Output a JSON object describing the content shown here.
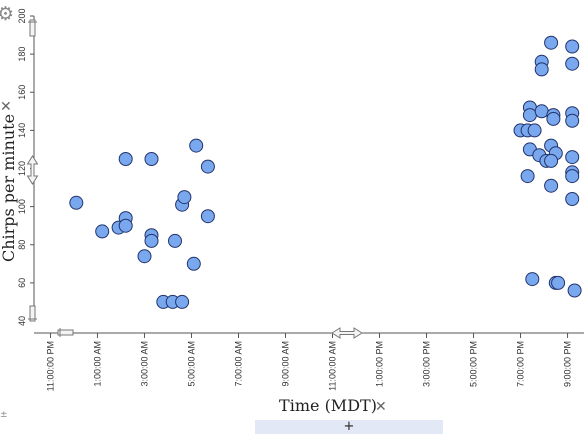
{
  "gear_icon": "gear-icon",
  "y_remove_icon": "close-icon",
  "x_remove_icon": "close-icon",
  "plus_label": "+",
  "attribute_icon": "±",
  "chart_data": {
    "type": "scatter",
    "xlabel": "Time (MDT)",
    "ylabel": "Chirps per minute",
    "ylim": [
      40,
      200
    ],
    "yticks": [
      40,
      60,
      80,
      100,
      120,
      140,
      160,
      180,
      200
    ],
    "xlim": [
      "10:18 PM",
      "9:42 PM"
    ],
    "x_tick_labels": [
      "11:00:00 PM",
      "1:00:00 AM",
      "3:00:00 AM",
      "5:00:00 AM",
      "7:00:00 AM",
      "9:00:00 AM",
      "11:00:00 AM",
      "1:00:00 PM",
      "3:00:00 PM",
      "5:00:00 PM",
      "7:00:00 PM",
      "9:00:00 PM"
    ],
    "grid": false,
    "point_color": "#79a8ef",
    "point_stroke": "#22336b",
    "points": [
      [
        "12:06 AM",
        102
      ],
      [
        "1:12 AM",
        87
      ],
      [
        "1:54 AM",
        89
      ],
      [
        "2:12 AM",
        94
      ],
      [
        "2:12 AM",
        90
      ],
      [
        "2:12 AM",
        125
      ],
      [
        "3:18 AM",
        125
      ],
      [
        "3:18 AM",
        85
      ],
      [
        "3:18 AM",
        82
      ],
      [
        "3:00 AM",
        74
      ],
      [
        "3:48 AM",
        50
      ],
      [
        "4:12 AM",
        50
      ],
      [
        "4:36 AM",
        50
      ],
      [
        "4:18 AM",
        82
      ],
      [
        "4:36 AM",
        101
      ],
      [
        "4:42 AM",
        105
      ],
      [
        "5:06 AM",
        70
      ],
      [
        "5:12 AM",
        132
      ],
      [
        "5:42 AM",
        121
      ],
      [
        "5:42 AM",
        95
      ],
      [
        "7:00 PM",
        140
      ],
      [
        "7:18 PM",
        140
      ],
      [
        "7:24 PM",
        152
      ],
      [
        "7:24 PM",
        148
      ],
      [
        "7:36 PM",
        140
      ],
      [
        "7:24 PM",
        130
      ],
      [
        "7:18 PM",
        116
      ],
      [
        "7:30 PM",
        62
      ],
      [
        "7:54 PM",
        150
      ],
      [
        "7:48 PM",
        127
      ],
      [
        "7:54 PM",
        176
      ],
      [
        "7:54 PM",
        172
      ],
      [
        "8:06 PM",
        124
      ],
      [
        "8:18 PM",
        132
      ],
      [
        "8:24 PM",
        148
      ],
      [
        "8:24 PM",
        146
      ],
      [
        "8:18 PM",
        186
      ],
      [
        "8:30 PM",
        128
      ],
      [
        "8:18 PM",
        124
      ],
      [
        "8:18 PM",
        111
      ],
      [
        "8:30 PM",
        60
      ],
      [
        "8:36 PM",
        60
      ],
      [
        "9:12 PM",
        184
      ],
      [
        "9:12 PM",
        175
      ],
      [
        "9:12 PM",
        149
      ],
      [
        "9:12 PM",
        145
      ],
      [
        "9:12 PM",
        126
      ],
      [
        "9:12 PM",
        118
      ],
      [
        "9:12 PM",
        116
      ],
      [
        "9:12 PM",
        104
      ],
      [
        "9:18 PM",
        56
      ]
    ]
  }
}
